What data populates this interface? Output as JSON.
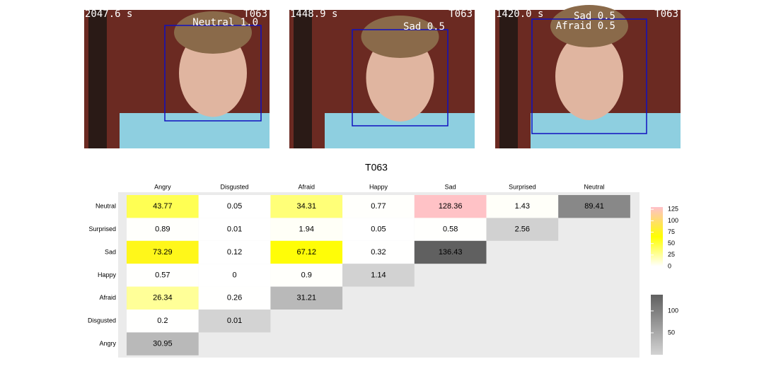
{
  "frames": [
    {
      "time": "2047.6 s",
      "id": "T063",
      "labels": [
        "Neutral 1.0"
      ]
    },
    {
      "time": "1448.9 s",
      "id": "T063",
      "labels": [
        "Sad 0.5"
      ]
    },
    {
      "time": "1420.0 s",
      "id": "T063",
      "labels": [
        "Sad 0.5",
        "Afraid 0.5"
      ]
    }
  ],
  "chart_data": {
    "type": "heatmap",
    "title": "T063",
    "x_categories": [
      "Angry",
      "Disgusted",
      "Afraid",
      "Happy",
      "Sad",
      "Surprised",
      "Neutral"
    ],
    "y_categories": [
      "Neutral",
      "Surprised",
      "Sad",
      "Happy",
      "Afraid",
      "Disgusted",
      "Angry"
    ],
    "values": [
      [
        43.77,
        0.05,
        34.31,
        0.77,
        128.36,
        1.43,
        89.41
      ],
      [
        0.89,
        0.01,
        1.94,
        0.05,
        0.58,
        2.56,
        null
      ],
      [
        73.29,
        0.12,
        67.12,
        0.32,
        136.43,
        null,
        null
      ],
      [
        0.57,
        0,
        0.9,
        1.14,
        null,
        null,
        null
      ],
      [
        26.34,
        0.26,
        31.21,
        null,
        null,
        null,
        null
      ],
      [
        0.2,
        0.01,
        null,
        null,
        null,
        null,
        null
      ],
      [
        30.95,
        null,
        null,
        null,
        null,
        null,
        null
      ]
    ],
    "colors": [
      "#ffffff",
      "#ffff00",
      "#ffc0cb"
    ],
    "color_lim": [
      0,
      130
    ],
    "color_ticks": [
      0,
      25,
      50,
      75,
      100,
      125
    ],
    "diagonal_colors": [
      "#d3d3d3",
      "#606060"
    ],
    "diagonal_lim": [
      0,
      137
    ],
    "diagonal_ticks": [
      50,
      100
    ]
  }
}
